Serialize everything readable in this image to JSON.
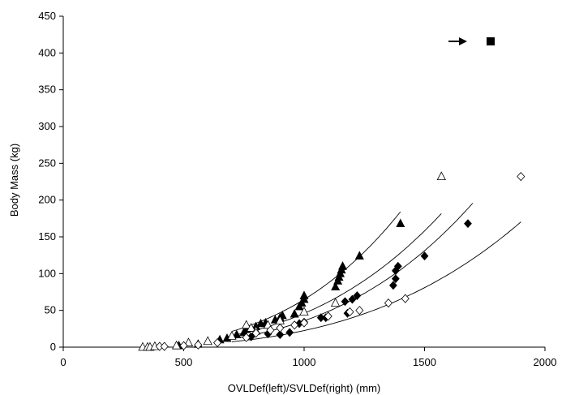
{
  "chart_data": {
    "type": "scatter",
    "title": "",
    "xlabel": "OVLDef(left)/SVLDef(right) (mm)",
    "ylabel": "Body Mass (kg)",
    "xlim": [
      0,
      2000
    ],
    "ylim": [
      0,
      450
    ],
    "x_ticks": [
      "0",
      "500",
      "1000",
      "1500",
      "2000"
    ],
    "y_ticks": [
      "0",
      "50",
      "100",
      "150",
      "200",
      "250",
      "300",
      "350",
      "400",
      "450"
    ],
    "grid": false,
    "legend": "none",
    "series": [
      {
        "marker": "filled-triangle",
        "points": [
          [
            480,
            2
          ],
          [
            560,
            4
          ],
          [
            650,
            10
          ],
          [
            680,
            12
          ],
          [
            720,
            17
          ],
          [
            750,
            20
          ],
          [
            760,
            24
          ],
          [
            800,
            28
          ],
          [
            820,
            32
          ],
          [
            840,
            33
          ],
          [
            880,
            37
          ],
          [
            900,
            40
          ],
          [
            910,
            43
          ],
          [
            960,
            45
          ],
          [
            980,
            55
          ],
          [
            990,
            60
          ],
          [
            1000,
            65
          ],
          [
            1000,
            70
          ],
          [
            1130,
            82
          ],
          [
            1140,
            90
          ],
          [
            1145,
            95
          ],
          [
            1150,
            100
          ],
          [
            1155,
            105
          ],
          [
            1160,
            110
          ],
          [
            1230,
            124
          ],
          [
            1400,
            168
          ]
        ]
      },
      {
        "marker": "open-triangle",
        "points": [
          [
            330,
            0
          ],
          [
            350,
            0
          ],
          [
            360,
            0
          ],
          [
            380,
            1
          ],
          [
            470,
            2
          ],
          [
            520,
            6
          ],
          [
            600,
            8
          ],
          [
            700,
            15
          ],
          [
            760,
            30
          ],
          [
            780,
            26
          ],
          [
            800,
            22
          ],
          [
            850,
            30
          ],
          [
            900,
            36
          ],
          [
            1000,
            48
          ],
          [
            1130,
            60
          ],
          [
            1570,
            232
          ]
        ]
      },
      {
        "marker": "filled-diamond",
        "points": [
          [
            780,
            14
          ],
          [
            850,
            18
          ],
          [
            900,
            17
          ],
          [
            940,
            20
          ],
          [
            980,
            32
          ],
          [
            1000,
            34
          ],
          [
            1070,
            40
          ],
          [
            1090,
            40
          ],
          [
            1170,
            62
          ],
          [
            1180,
            46
          ],
          [
            1200,
            65
          ],
          [
            1220,
            70
          ],
          [
            1370,
            84
          ],
          [
            1380,
            93
          ],
          [
            1380,
            104
          ],
          [
            1390,
            110
          ],
          [
            1500,
            124
          ],
          [
            1680,
            168
          ]
        ]
      },
      {
        "marker": "open-diamond",
        "points": [
          [
            400,
            1
          ],
          [
            420,
            1
          ],
          [
            500,
            2
          ],
          [
            560,
            3
          ],
          [
            640,
            6
          ],
          [
            760,
            13
          ],
          [
            800,
            19
          ],
          [
            860,
            23
          ],
          [
            900,
            26
          ],
          [
            960,
            30
          ],
          [
            1000,
            33
          ],
          [
            1100,
            42
          ],
          [
            1190,
            48
          ],
          [
            1230,
            50
          ],
          [
            1350,
            60
          ],
          [
            1420,
            66
          ],
          [
            1900,
            232
          ]
        ]
      }
    ],
    "curves": [
      {
        "from_x": 700,
        "to_x": 1400,
        "a": 3.25e-05,
        "b": 3.1
      },
      {
        "from_x": 700,
        "to_x": 1570,
        "a": 3.25e-05,
        "b": 3.05
      },
      {
        "from_x": 700,
        "to_x": 1700,
        "a": 9e-06,
        "b": 3.2
      },
      {
        "from_x": 700,
        "to_x": 1900,
        "a": 8e-06,
        "b": 3.15
      }
    ],
    "annotation": {
      "arrow_glyph": "➔",
      "square_glyph": "■"
    }
  }
}
